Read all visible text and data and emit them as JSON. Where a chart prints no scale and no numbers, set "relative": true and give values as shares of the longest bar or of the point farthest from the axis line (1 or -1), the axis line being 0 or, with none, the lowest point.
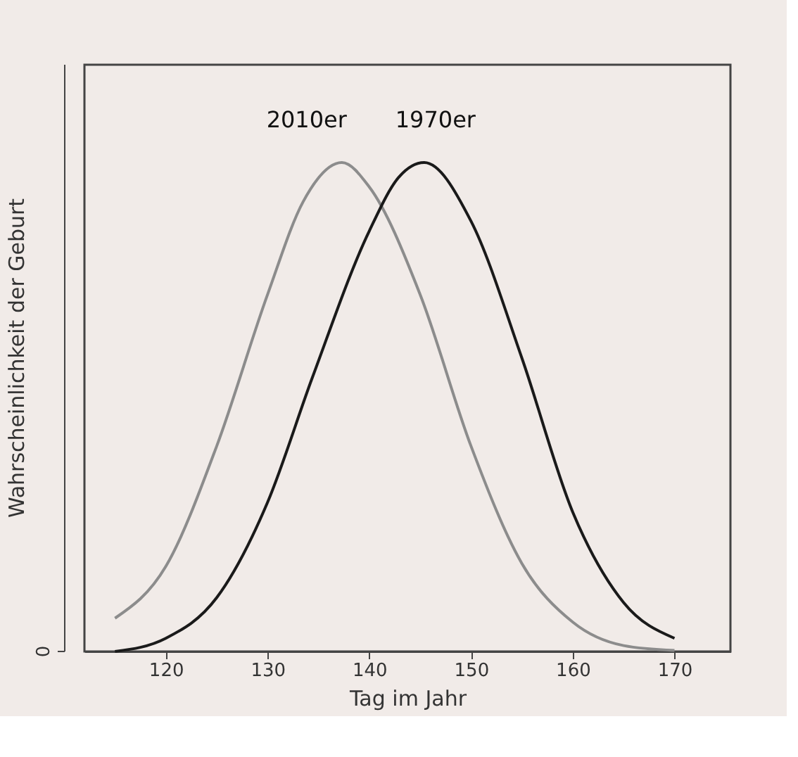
{
  "chart_data": {
    "type": "line",
    "relative": true,
    "xlabel": "Tag im Jahr",
    "ylabel": "Wahrscheinlichkeit der Geburt",
    "xlim": [
      112,
      175.5
    ],
    "xticks": [
      120,
      130,
      140,
      150,
      160,
      170
    ],
    "annotations": [
      "0"
    ],
    "grid": false,
    "legend": false,
    "marker": "none",
    "line_style": "solid",
    "series": [
      {
        "name": "2010er",
        "color": "#8c8c8c",
        "x": [
          115,
          120,
          125,
          130,
          133.5,
          137.3,
          140,
          145,
          150,
          155,
          160,
          165,
          170
        ],
        "values": [
          0.068,
          0.174,
          0.42,
          0.73,
          0.92,
          1.0,
          0.95,
          0.73,
          0.42,
          0.18,
          0.06,
          0.012,
          0.002
        ]
      },
      {
        "name": "1970er",
        "color": "#1a1a1a",
        "x": [
          115,
          120,
          125,
          130,
          134.4,
          140,
          142.9,
          145.4,
          150,
          155,
          160,
          165,
          170
        ],
        "values": [
          0.0,
          0.027,
          0.11,
          0.305,
          0.56,
          0.86,
          0.97,
          1.0,
          0.88,
          0.6,
          0.285,
          0.1,
          0.027
        ]
      }
    ]
  }
}
